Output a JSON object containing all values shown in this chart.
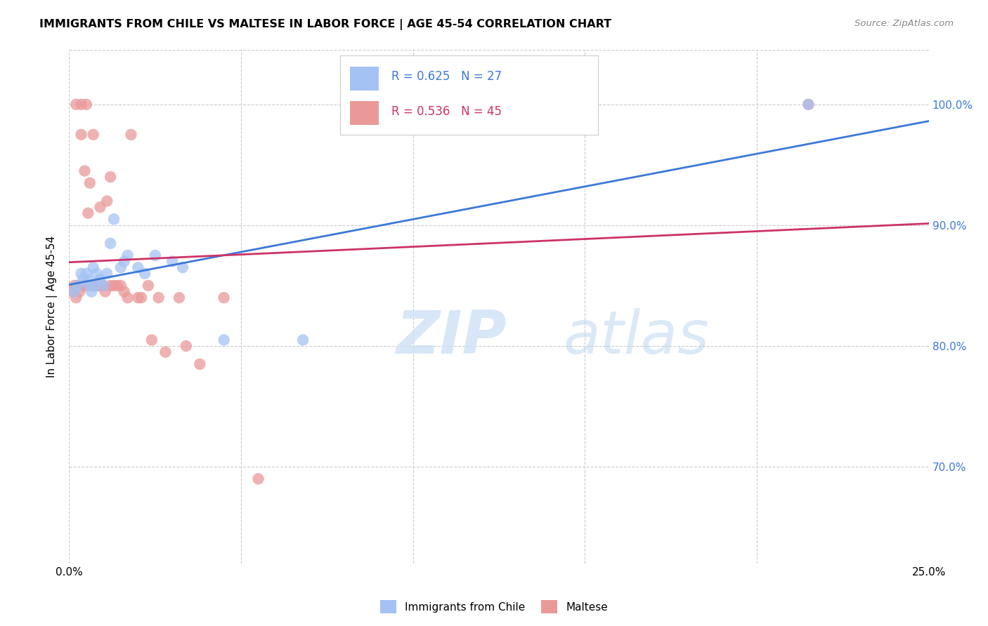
{
  "title": "IMMIGRANTS FROM CHILE VS MALTESE IN LABOR FORCE | AGE 45-54 CORRELATION CHART",
  "source": "Source: ZipAtlas.com",
  "ylabel": "In Labor Force | Age 45-54",
  "yticks": [
    70.0,
    80.0,
    90.0,
    100.0
  ],
  "ytick_labels": [
    "70.0%",
    "80.0%",
    "90.0%",
    "100.0%"
  ],
  "xlim": [
    0.0,
    25.0
  ],
  "ylim": [
    62.0,
    104.5
  ],
  "legend_chile_R": "0.625",
  "legend_chile_N": "27",
  "legend_maltese_R": "0.536",
  "legend_maltese_N": "45",
  "chile_color": "#a4c2f4",
  "maltese_color": "#ea9999",
  "chile_line_color": "#3c78d8",
  "maltese_line_color": "#cc3366",
  "legend_text_chile_color": "#3c78d8",
  "legend_text_maltese_color": "#cc3366",
  "chile_x": [
    0.15,
    0.25,
    0.35,
    0.4,
    0.5,
    0.55,
    0.6,
    0.65,
    0.7,
    0.75,
    0.8,
    0.9,
    1.0,
    1.1,
    1.2,
    1.3,
    1.5,
    1.6,
    1.7,
    2.0,
    2.2,
    2.5,
    3.0,
    3.3,
    4.5,
    6.8,
    21.5
  ],
  "chile_y": [
    84.5,
    85.0,
    86.0,
    85.5,
    86.0,
    85.5,
    85.0,
    84.5,
    86.5,
    85.0,
    86.0,
    85.5,
    85.0,
    86.0,
    88.5,
    90.5,
    86.5,
    87.0,
    87.5,
    86.5,
    86.0,
    87.5,
    87.0,
    86.5,
    80.5,
    80.5,
    100.0
  ],
  "maltese_x": [
    0.1,
    0.15,
    0.2,
    0.2,
    0.25,
    0.3,
    0.35,
    0.35,
    0.4,
    0.45,
    0.5,
    0.5,
    0.55,
    0.6,
    0.65,
    0.7,
    0.7,
    0.75,
    0.8,
    0.85,
    0.9,
    0.95,
    1.0,
    1.05,
    1.1,
    1.2,
    1.2,
    1.3,
    1.4,
    1.5,
    1.6,
    1.7,
    1.8,
    2.0,
    2.1,
    2.3,
    2.4,
    2.6,
    2.8,
    3.2,
    3.4,
    3.8,
    4.5,
    5.5,
    21.5
  ],
  "maltese_y": [
    84.5,
    85.0,
    84.0,
    100.0,
    85.0,
    84.5,
    100.0,
    97.5,
    85.0,
    94.5,
    85.0,
    100.0,
    91.0,
    93.5,
    85.0,
    97.5,
    85.0,
    85.0,
    85.0,
    85.0,
    91.5,
    85.0,
    85.0,
    84.5,
    92.0,
    85.0,
    94.0,
    85.0,
    85.0,
    85.0,
    84.5,
    84.0,
    97.5,
    84.0,
    84.0,
    85.0,
    80.5,
    84.0,
    79.5,
    84.0,
    80.0,
    78.5,
    84.0,
    69.0,
    100.0
  ]
}
